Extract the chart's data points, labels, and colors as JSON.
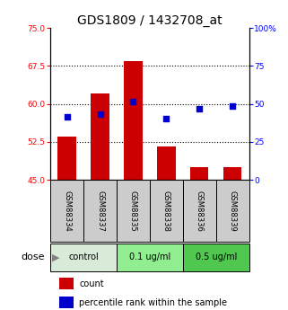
{
  "title": "GDS1809 / 1432708_at",
  "samples": [
    "GSM88334",
    "GSM88337",
    "GSM88335",
    "GSM88338",
    "GSM88336",
    "GSM88339"
  ],
  "bar_values": [
    53.5,
    62.0,
    68.5,
    51.5,
    47.5,
    47.5
  ],
  "dot_values": [
    57.5,
    58.0,
    60.5,
    57.0,
    59.0,
    59.5
  ],
  "bar_bottom": 45,
  "left_ylim": [
    45,
    75
  ],
  "right_ylim": [
    0,
    100
  ],
  "left_yticks": [
    45,
    52.5,
    60,
    67.5,
    75
  ],
  "right_yticks": [
    0,
    25,
    50,
    75,
    100
  ],
  "right_yticklabels": [
    "0",
    "25",
    "50",
    "75",
    "100%"
  ],
  "groups": [
    {
      "label": "control",
      "start": 0,
      "end": 1,
      "color": "#d8ead8"
    },
    {
      "label": "0.1 ug/ml",
      "start": 2,
      "end": 3,
      "color": "#90ee90"
    },
    {
      "label": "0.5 ug/ml",
      "start": 4,
      "end": 5,
      "color": "#50c850"
    }
  ],
  "bar_color": "#cc0000",
  "dot_color": "#0000cc",
  "bar_width": 0.55,
  "bg_color": "#ffffff",
  "dose_label": "dose",
  "legend_bar_label": "count",
  "legend_dot_label": "percentile rank within the sample",
  "sample_bg_color": "#cccccc",
  "title_fontsize": 10
}
